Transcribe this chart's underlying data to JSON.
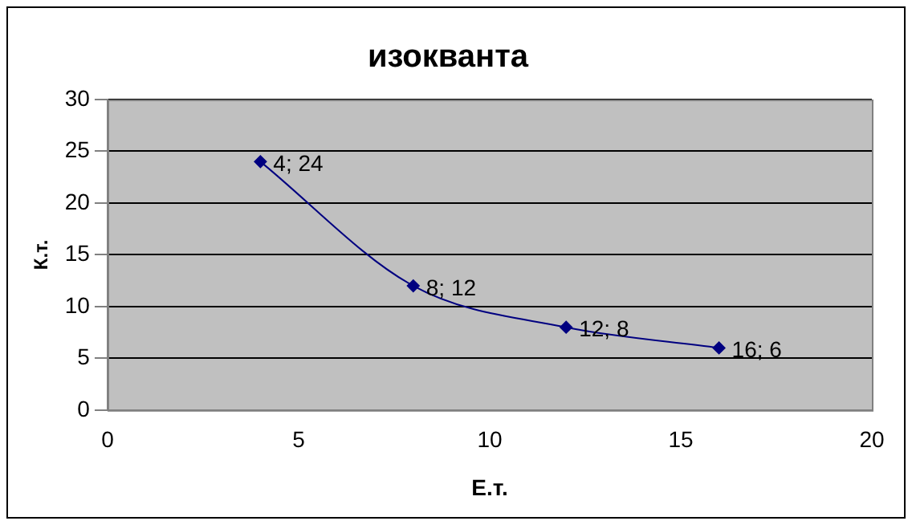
{
  "chart_data": {
    "type": "line",
    "title": "изокванта",
    "xlabel": "Е.т.",
    "ylabel": "К.т.",
    "x": [
      4,
      8,
      12,
      16
    ],
    "series": [
      {
        "color": "#000080",
        "values": [
          24,
          12,
          8,
          6
        ],
        "value_labels": [
          "4; 24",
          "8; 12",
          "12; 8",
          "16; 6"
        ]
      }
    ],
    "xlim": [
      0,
      20
    ],
    "xticks": [
      0,
      5,
      10,
      15,
      20
    ],
    "ylim": [
      0,
      30
    ],
    "yticks": [
      0,
      5,
      10,
      15,
      20,
      25,
      30
    ],
    "grid": "y",
    "legend": false,
    "marker": "diamond",
    "line_style": "solid"
  }
}
